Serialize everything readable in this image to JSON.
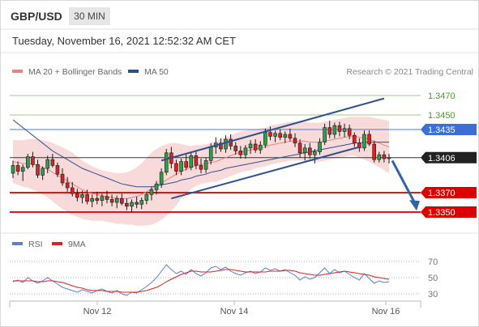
{
  "header": {
    "symbol": "GBP/USD",
    "timeframe": "30 MIN"
  },
  "timestamp": "Tuesday, November 16, 2021 12:52:32 AM CET",
  "legend": {
    "ma20_label": "MA 20 + Bollinger Bands",
    "ma50_label": "MA 50",
    "ma20_color": "#f08080",
    "ma50_color": "#2f4f8f",
    "copyright": "Research © 2021 Trading Central"
  },
  "rsi_legend": {
    "rsi_label": "RSI",
    "ma_label": "9MA",
    "rsi_color": "#5b7fd6",
    "ma_color": "#e02020"
  },
  "chart_data": [
    {
      "type": "candlestick",
      "title": "GBP/USD 30 MIN",
      "x_ticks": [
        "Nov 12",
        "Nov 14",
        "Nov 16"
      ],
      "ylim": [
        1.3335,
        1.3485
      ],
      "levels": [
        {
          "value": 1.347,
          "label": "1.3470",
          "color": "#4a9a2a",
          "style": "line"
        },
        {
          "value": 1.345,
          "label": "1.3450",
          "color": "#4a9a2a",
          "style": "line"
        },
        {
          "value": 1.3435,
          "label": "1.3435",
          "color": "#3a6fd8",
          "style": "tag"
        },
        {
          "value": 1.3406,
          "label": "1.3406",
          "color": "#222222",
          "style": "tag"
        },
        {
          "value": 1.337,
          "label": "1.3370",
          "color": "#dd0000",
          "style": "tag"
        },
        {
          "value": 1.335,
          "label": "1.3350",
          "color": "#dd0000",
          "style": "tag"
        }
      ],
      "candles": [
        [
          1.339,
          1.3403,
          1.3385,
          1.3398
        ],
        [
          1.3398,
          1.3402,
          1.3388,
          1.3392
        ],
        [
          1.3392,
          1.3399,
          1.3382,
          1.3396
        ],
        [
          1.3396,
          1.341,
          1.3394,
          1.3407
        ],
        [
          1.3407,
          1.3412,
          1.3396,
          1.3399
        ],
        [
          1.3399,
          1.3404,
          1.3385,
          1.3388
        ],
        [
          1.3388,
          1.3397,
          1.3383,
          1.3395
        ],
        [
          1.3395,
          1.3408,
          1.339,
          1.3404
        ],
        [
          1.3404,
          1.341,
          1.3396,
          1.3398
        ],
        [
          1.3398,
          1.3401,
          1.3386,
          1.3389
        ],
        [
          1.3389,
          1.3395,
          1.3377,
          1.338
        ],
        [
          1.338,
          1.3386,
          1.3371,
          1.3375
        ],
        [
          1.3375,
          1.3381,
          1.3366,
          1.3369
        ],
        [
          1.3369,
          1.3374,
          1.3361,
          1.3365
        ],
        [
          1.3365,
          1.3372,
          1.3359,
          1.3368
        ],
        [
          1.3368,
          1.3373,
          1.3358,
          1.3361
        ],
        [
          1.3361,
          1.3368,
          1.3355,
          1.3364
        ],
        [
          1.3364,
          1.3371,
          1.3358,
          1.3362
        ],
        [
          1.3362,
          1.3369,
          1.3356,
          1.3366
        ],
        [
          1.3366,
          1.3372,
          1.3359,
          1.3363
        ],
        [
          1.3363,
          1.3368,
          1.3356,
          1.336
        ],
        [
          1.336,
          1.3367,
          1.3354,
          1.3364
        ],
        [
          1.3364,
          1.3369,
          1.3357,
          1.3359
        ],
        [
          1.3359,
          1.3364,
          1.3352,
          1.3356
        ],
        [
          1.3356,
          1.3363,
          1.335,
          1.336
        ],
        [
          1.336,
          1.3366,
          1.3354,
          1.3358
        ],
        [
          1.3358,
          1.3365,
          1.3353,
          1.3362
        ],
        [
          1.3362,
          1.337,
          1.3358,
          1.3368
        ],
        [
          1.3368,
          1.3376,
          1.3362,
          1.3373
        ],
        [
          1.3373,
          1.3382,
          1.3368,
          1.3379
        ],
        [
          1.3379,
          1.3395,
          1.3375,
          1.3391
        ],
        [
          1.3391,
          1.3415,
          1.3388,
          1.3411
        ],
        [
          1.3411,
          1.3417,
          1.3395,
          1.34
        ],
        [
          1.34,
          1.3404,
          1.3388,
          1.3392
        ],
        [
          1.3392,
          1.3405,
          1.3388,
          1.3402
        ],
        [
          1.3402,
          1.3409,
          1.3393,
          1.3396
        ],
        [
          1.3396,
          1.3412,
          1.3393,
          1.3408
        ],
        [
          1.3408,
          1.3413,
          1.3394,
          1.3398
        ],
        [
          1.3398,
          1.3405,
          1.339,
          1.3394
        ],
        [
          1.3394,
          1.3406,
          1.339,
          1.3403
        ],
        [
          1.3403,
          1.3421,
          1.3399,
          1.3417
        ],
        [
          1.3417,
          1.3427,
          1.341,
          1.3421
        ],
        [
          1.3421,
          1.3426,
          1.3412,
          1.3415
        ],
        [
          1.3415,
          1.3429,
          1.3411,
          1.3425
        ],
        [
          1.3425,
          1.343,
          1.3414,
          1.3418
        ],
        [
          1.3418,
          1.3422,
          1.3409,
          1.3413
        ],
        [
          1.3413,
          1.3418,
          1.3405,
          1.3409
        ],
        [
          1.3409,
          1.3419,
          1.3405,
          1.3416
        ],
        [
          1.3416,
          1.3424,
          1.341,
          1.342
        ],
        [
          1.342,
          1.3425,
          1.3411,
          1.3414
        ],
        [
          1.3414,
          1.3423,
          1.341,
          1.3419
        ],
        [
          1.3419,
          1.3436,
          1.3416,
          1.3432
        ],
        [
          1.3432,
          1.3438,
          1.3424,
          1.3428
        ],
        [
          1.3428,
          1.3434,
          1.3422,
          1.3431
        ],
        [
          1.3431,
          1.3435,
          1.3424,
          1.3427
        ],
        [
          1.3427,
          1.3433,
          1.3421,
          1.343
        ],
        [
          1.343,
          1.3436,
          1.3423,
          1.3426
        ],
        [
          1.3426,
          1.3431,
          1.3417,
          1.3421
        ],
        [
          1.3421,
          1.3425,
          1.3406,
          1.3411
        ],
        [
          1.3411,
          1.342,
          1.3403,
          1.3416
        ],
        [
          1.3416,
          1.3421,
          1.3405,
          1.3409
        ],
        [
          1.3409,
          1.3415,
          1.34,
          1.3412
        ],
        [
          1.3412,
          1.3426,
          1.3409,
          1.3422
        ],
        [
          1.3422,
          1.3441,
          1.3419,
          1.3437
        ],
        [
          1.3437,
          1.3444,
          1.3426,
          1.343
        ],
        [
          1.343,
          1.3442,
          1.3426,
          1.3439
        ],
        [
          1.3439,
          1.3443,
          1.3428,
          1.3433
        ],
        [
          1.3433,
          1.3441,
          1.3427,
          1.3436
        ],
        [
          1.3436,
          1.344,
          1.3425,
          1.3429
        ],
        [
          1.3429,
          1.3432,
          1.3417,
          1.3421
        ],
        [
          1.3421,
          1.3426,
          1.3412,
          1.3416
        ],
        [
          1.3416,
          1.3434,
          1.3413,
          1.343
        ],
        [
          1.343,
          1.3434,
          1.3418,
          1.342
        ],
        [
          1.342,
          1.3423,
          1.3401,
          1.3404
        ],
        [
          1.3404,
          1.3412,
          1.3401,
          1.3409
        ],
        [
          1.3409,
          1.3413,
          1.3401,
          1.3405
        ],
        [
          1.3405,
          1.341,
          1.34,
          1.3406
        ]
      ],
      "ma20": [
        1.3402,
        1.3401,
        1.34,
        1.34,
        1.3399,
        1.3398,
        1.3396,
        1.3394,
        1.3391,
        1.3388,
        1.3385,
        1.3382,
        1.3379,
        1.3376,
        1.3373,
        1.3371,
        1.3369,
        1.3368,
        1.3367,
        1.3366,
        1.3365,
        1.3364,
        1.3364,
        1.3364,
        1.3365,
        1.3366,
        1.3368,
        1.3371,
        1.3374,
        1.3377,
        1.338,
        1.3383,
        1.3386,
        1.3389,
        1.3392,
        1.3394,
        1.3396,
        1.3398,
        1.3399,
        1.34,
        1.3401,
        1.3402,
        1.3404,
        1.3406,
        1.3408,
        1.341,
        1.3412,
        1.3413,
        1.3414,
        1.3415,
        1.3416,
        1.3417,
        1.3419,
        1.342,
        1.3421,
        1.3422,
        1.3423,
        1.3423,
        1.3423,
        1.3423,
        1.3422,
        1.3422,
        1.3422,
        1.3423,
        1.3424,
        1.3425,
        1.3426,
        1.3427,
        1.3428,
        1.3428,
        1.3427,
        1.3426,
        1.3425,
        1.3423,
        1.3421,
        1.3419,
        1.3417
      ],
      "ma50": [
        1.3445,
        1.3441,
        1.3437,
        1.3433,
        1.3429,
        1.3425,
        1.3421,
        1.3417,
        1.3413,
        1.341,
        1.3407,
        1.3404,
        1.3401,
        1.3398,
        1.3395,
        1.3393,
        1.3391,
        1.3389,
        1.3387,
        1.3385,
        1.3383,
        1.3381,
        1.3379,
        1.3378,
        1.3377,
        1.3376,
        1.3376,
        1.3376,
        1.3376,
        1.3377,
        1.3378,
        1.3379,
        1.338,
        1.3381,
        1.3383,
        1.3384,
        1.3385,
        1.3387,
        1.3388,
        1.3389,
        1.3391,
        1.3392,
        1.3393,
        1.3395,
        1.3396,
        1.3397,
        1.3398,
        1.3399,
        1.34,
        1.3401,
        1.3402,
        1.3403,
        1.3404,
        1.3405,
        1.3406,
        1.3407,
        1.3408,
        1.3409,
        1.341,
        1.3411,
        1.3412,
        1.3413,
        1.3414,
        1.3415,
        1.3416,
        1.3417,
        1.3418,
        1.3419,
        1.342,
        1.3421,
        1.3421,
        1.3422,
        1.3422,
        1.3422,
        1.3422,
        1.3422,
        1.3422
      ],
      "bb_width": [
        0.0022,
        0.0023,
        0.0024,
        0.0025,
        0.0026,
        0.0027,
        0.0028,
        0.0029,
        0.003,
        0.0031,
        0.0032,
        0.0032,
        0.0032,
        0.0031,
        0.003,
        0.0029,
        0.0028,
        0.0027,
        0.0026,
        0.0026,
        0.0026,
        0.0026,
        0.0026,
        0.0027,
        0.0028,
        0.003,
        0.0032,
        0.0035,
        0.0037,
        0.0038,
        0.0038,
        0.0037,
        0.0035,
        0.0032,
        0.0028,
        0.0025,
        0.0022,
        0.0021,
        0.002,
        0.002,
        0.002,
        0.0021,
        0.0021,
        0.0021,
        0.0021,
        0.0021,
        0.0021,
        0.0021,
        0.0021,
        0.002,
        0.002,
        0.002,
        0.002,
        0.002,
        0.002,
        0.002,
        0.002,
        0.002,
        0.002,
        0.002,
        0.002,
        0.002,
        0.002,
        0.002,
        0.002,
        0.002,
        0.002,
        0.002,
        0.002,
        0.002,
        0.0021,
        0.0022,
        0.0023,
        0.0024,
        0.0025,
        0.0026,
        0.0027
      ],
      "channel": {
        "upper": [
          [
            1.3403,
            1.3467
          ]
        ],
        "lower": [
          [
            1.3364,
            1.3417
          ]
        ]
      },
      "arrow": {
        "from": 1.3403,
        "to": 1.3354
      }
    },
    {
      "type": "line",
      "title": "RSI",
      "ylim": [
        25,
        75
      ],
      "y_ticks": [
        70,
        50,
        30
      ],
      "series": [
        {
          "name": "RSI",
          "color": "#5b7fd6",
          "values": [
            45,
            47,
            44,
            50,
            46,
            43,
            46,
            50,
            46,
            42,
            38,
            36,
            34,
            32,
            35,
            33,
            31,
            34,
            36,
            33,
            31,
            34,
            30,
            28,
            32,
            31,
            35,
            39,
            44,
            50,
            58,
            66,
            60,
            55,
            58,
            54,
            60,
            55,
            52,
            56,
            62,
            64,
            60,
            63,
            58,
            55,
            53,
            56,
            58,
            55,
            57,
            62,
            59,
            61,
            58,
            60,
            56,
            53,
            47,
            51,
            48,
            50,
            56,
            62,
            55,
            60,
            56,
            58,
            54,
            50,
            47,
            55,
            49,
            43,
            46,
            44,
            45
          ]
        },
        {
          "name": "9MA",
          "color": "#e02020",
          "values": [
            46,
            46,
            46,
            46,
            46,
            45,
            45,
            46,
            46,
            45,
            44,
            42,
            40,
            38,
            37,
            35,
            34,
            34,
            34,
            33,
            33,
            33,
            32,
            32,
            32,
            32,
            33,
            34,
            36,
            38,
            41,
            45,
            48,
            51,
            54,
            56,
            58,
            58,
            57,
            57,
            57,
            58,
            59,
            60,
            60,
            59,
            58,
            57,
            57,
            57,
            57,
            57,
            58,
            58,
            58,
            59,
            59,
            58,
            56,
            55,
            54,
            53,
            53,
            54,
            55,
            56,
            57,
            58,
            57,
            56,
            55,
            54,
            53,
            51,
            50,
            49,
            48
          ]
        }
      ]
    }
  ]
}
